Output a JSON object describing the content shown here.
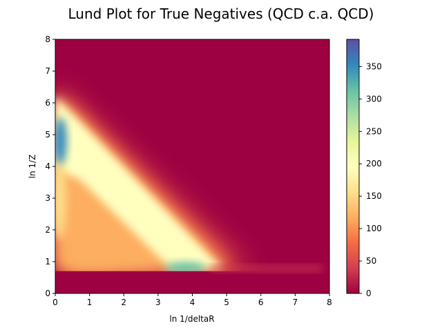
{
  "chart_data": {
    "type": "heatmap",
    "title": "Lund Plot for True Negatives (QCD c.a. QCD)",
    "xlabel": "ln 1/deltaR",
    "ylabel": "ln 1/Z",
    "xlim": [
      0,
      8
    ],
    "ylim": [
      0,
      8
    ],
    "x_ticks": [
      "0",
      "1",
      "2",
      "3",
      "4",
      "5",
      "6",
      "7",
      "8"
    ],
    "y_ticks": [
      "0",
      "1",
      "2",
      "3",
      "4",
      "5",
      "6",
      "7",
      "8"
    ],
    "colorbar": {
      "min": 0,
      "max": 392,
      "ticks": [
        "0",
        "50",
        "100",
        "150",
        "200",
        "250",
        "300",
        "350"
      ],
      "tick_values": [
        0,
        50,
        100,
        150,
        200,
        250,
        300,
        350
      ],
      "colormap": "Spectral",
      "colors": [
        "#9e0142",
        "#d53e4f",
        "#f46d43",
        "#fdae61",
        "#fee08b",
        "#ffffbf",
        "#e6f598",
        "#abdda4",
        "#66c2a5",
        "#3288bd",
        "#5e4fa2"
      ]
    },
    "cutoff_line": {
      "y": 0.7
    },
    "features": [
      {
        "label": "upper-left diagonal edge",
        "from": [
          0.0,
          6.3
        ],
        "to": [
          4.9,
          0.7
        ],
        "density": 200
      },
      {
        "label": "left-edge hotspot",
        "x": 0.15,
        "y": 4.8,
        "density": 340
      },
      {
        "label": "bottom hotspot",
        "x": 3.8,
        "y": 0.85,
        "density": 330
      },
      {
        "label": "lower band",
        "from": [
          0.5,
          3.5
        ],
        "to": [
          2.5,
          1.0
        ],
        "density": 120
      }
    ]
  }
}
